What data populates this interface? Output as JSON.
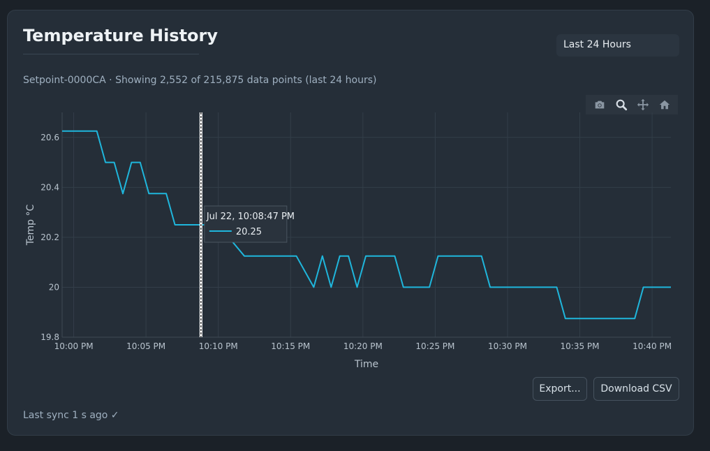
{
  "header": {
    "title": "Temperature History",
    "range_label": "Last 24 Hours"
  },
  "subtitle": "Setpoint-0000CA · Showing 2,552 of 215,875 data points (last 24 hours)",
  "modebar": [
    "camera-icon",
    "zoom-icon",
    "pan-icon",
    "home-icon"
  ],
  "hover": {
    "time": "Jul 22, 10:08:47 PM",
    "value": "20.25"
  },
  "buttons": {
    "export": "Export...",
    "csv": "Download CSV"
  },
  "footer": {
    "sync": "Last sync 1 s ago ✓"
  },
  "colors": {
    "line": "#1fb6dc",
    "background": "#252e38",
    "grid": "#333e49"
  },
  "chart_data": {
    "type": "line",
    "xlabel": "Time",
    "ylabel": "Temp °C",
    "x_tick_labels": [
      "10:00 PM",
      "10:05 PM",
      "10:10 PM",
      "10:15 PM",
      "10:20 PM",
      "10:25 PM",
      "10:30 PM",
      "10:35 PM",
      "10:40 PM"
    ],
    "x_ticks_min": [
      0,
      5,
      10,
      15,
      20,
      25,
      30,
      35,
      40
    ],
    "xlim_min": [
      -0.8,
      41.3
    ],
    "y_ticks": [
      19.8,
      20,
      20.2,
      20.4,
      20.6
    ],
    "y_tick_labels": [
      "19.8",
      "20",
      "20.2",
      "20.4",
      "20.6"
    ],
    "ylim": [
      19.8,
      20.7
    ],
    "hover_x_min": 8.8,
    "series": [
      {
        "x_min": [
          -0.8,
          1.6,
          2.2,
          2.8,
          3.4,
          4.0,
          4.6,
          5.2,
          6.4,
          7.0,
          9.0,
          10.0,
          11.8,
          12.4,
          15.4,
          16.6,
          17.2,
          17.8,
          18.4,
          19.0,
          19.6,
          20.2,
          22.2,
          22.8,
          24.6,
          25.2,
          28.2,
          28.8,
          33.4,
          34.0,
          38.8,
          39.4,
          41.3
        ],
        "y": [
          20.625,
          20.625,
          20.5,
          20.5,
          20.375,
          20.5,
          20.5,
          20.375,
          20.375,
          20.25,
          20.25,
          20.25,
          20.125,
          20.125,
          20.125,
          20.0,
          20.125,
          20.0,
          20.125,
          20.125,
          20.0,
          20.125,
          20.125,
          20.0,
          20.0,
          20.125,
          20.125,
          20.0,
          20.0,
          19.875,
          19.875,
          20.0,
          20.0
        ]
      }
    ]
  }
}
